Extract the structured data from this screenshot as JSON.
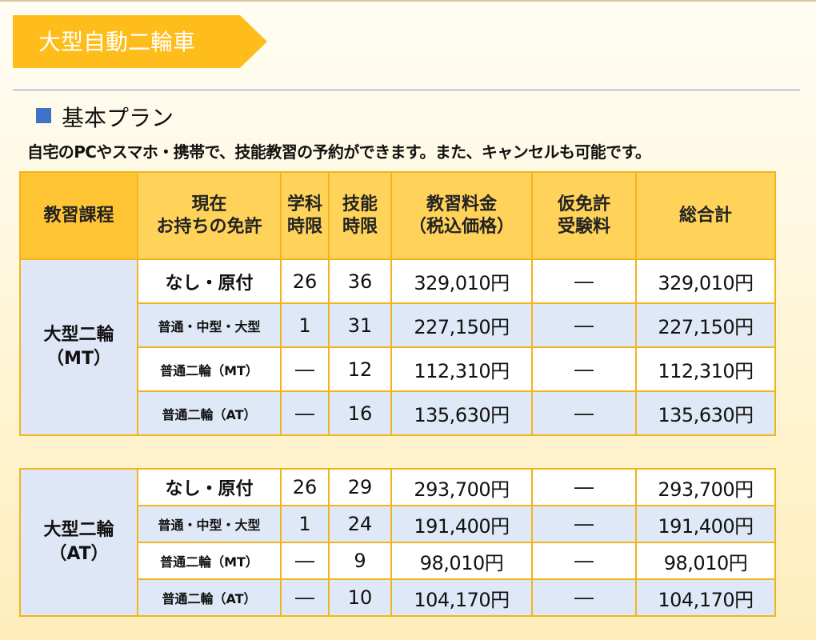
{
  "banner": {
    "title": "大型自動二輪車"
  },
  "plan": {
    "title": "基本プラン",
    "description": "自宅のPCやスマホ・携帯で、技能教習の予約ができます。また、キャンセルも可能です。"
  },
  "table": {
    "headers": {
      "course": "教習課程",
      "license_line1": "現在",
      "license_line2": "お持ちの免許",
      "academic_line1": "学科",
      "academic_line2": "時限",
      "skill_line1": "技能",
      "skill_line2": "時限",
      "fee_line1": "教習料金",
      "fee_line2": "（税込価格）",
      "exam_line1": "仮免許",
      "exam_line2": "受験料",
      "total": "総合計"
    }
  },
  "mt": {
    "course_line1": "大型二輪",
    "course_line2": "（MT）",
    "rows": [
      {
        "license": "なし・原付",
        "academic": "26",
        "skill": "36",
        "fee": "329,010円",
        "exam": "―",
        "total": "329,010円"
      },
      {
        "license": "普通・中型・大型",
        "academic": "1",
        "skill": "31",
        "fee": "227,150円",
        "exam": "―",
        "total": "227,150円"
      },
      {
        "license": "普通二輪（MT）",
        "academic": "―",
        "skill": "12",
        "fee": "112,310円",
        "exam": "―",
        "total": "112,310円"
      },
      {
        "license": "普通二輪（AT）",
        "academic": "―",
        "skill": "16",
        "fee": "135,630円",
        "exam": "―",
        "total": "135,630円"
      }
    ]
  },
  "at": {
    "course_line1": "大型二輪",
    "course_line2": "（AT）",
    "rows": [
      {
        "license": "なし・原付",
        "academic": "26",
        "skill": "29",
        "fee": "293,700円",
        "exam": "―",
        "total": "293,700円"
      },
      {
        "license": "普通・中型・大型",
        "academic": "1",
        "skill": "24",
        "fee": "191,400円",
        "exam": "―",
        "total": "191,400円"
      },
      {
        "license": "普通二輪（MT）",
        "academic": "―",
        "skill": "9",
        "fee": "98,010円",
        "exam": "―",
        "total": "98,010円"
      },
      {
        "license": "普通二輪（AT）",
        "academic": "―",
        "skill": "10",
        "fee": "104,170円",
        "exam": "―",
        "total": "104,170円"
      }
    ]
  },
  "colors": {
    "banner": "#ffbd1c",
    "header_bg": "#ffd35a",
    "border": "#f2b41d",
    "course_bg": "#dfe6f5",
    "stripe": "#dfe8f6",
    "square": "#3d74c7"
  }
}
